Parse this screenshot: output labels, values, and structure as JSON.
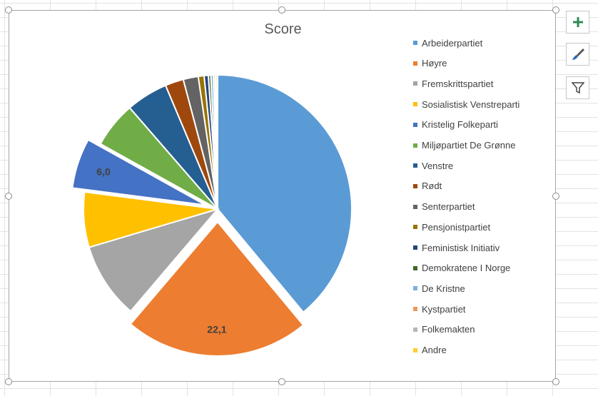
{
  "chart_data": {
    "type": "pie",
    "title": "Score",
    "legend_position": "right",
    "categories": [
      "Arbeiderpartiet",
      "Høyre",
      "Fremskrittspartiet",
      "Sosialistisk Venstreparti",
      "Kristelig Folkeparti",
      "Miljøpartiet De Grønne",
      "Venstre",
      "Rødt",
      "Senterpartiet",
      "Pensjonistpartiet",
      "Feministisk Initiativ",
      "Demokratene I Norge",
      "De Kristne",
      "Kystpartiet",
      "Folkemakten",
      "Andre"
    ],
    "values": [
      38.7,
      22.1,
      9.1,
      6.6,
      6.0,
      5.5,
      5.0,
      2.2,
      1.8,
      0.7,
      0.5,
      0.3,
      0.3,
      0.2,
      0.1,
      0.2
    ],
    "colors": [
      "#5B9BD5",
      "#ED7D31",
      "#A5A5A5",
      "#FFC000",
      "#4472C4",
      "#70AD47",
      "#255E91",
      "#9E480E",
      "#636363",
      "#997300",
      "#264478",
      "#43682B",
      "#7CAFDD",
      "#F1975A",
      "#B7B7B7",
      "#FFCD33"
    ],
    "exploded": [
      "Høyre",
      "Kristelig Folkeparti"
    ],
    "data_labels": [
      {
        "category": "Høyre",
        "text": "22,1"
      },
      {
        "category": "Kristelig Folkeparti",
        "text": "6,0"
      }
    ]
  },
  "side_buttons": [
    {
      "name": "add-chart-element-button",
      "icon": "plus-icon"
    },
    {
      "name": "chart-styles-button",
      "icon": "paintbrush-icon"
    },
    {
      "name": "chart-filters-button",
      "icon": "funnel-icon"
    }
  ]
}
